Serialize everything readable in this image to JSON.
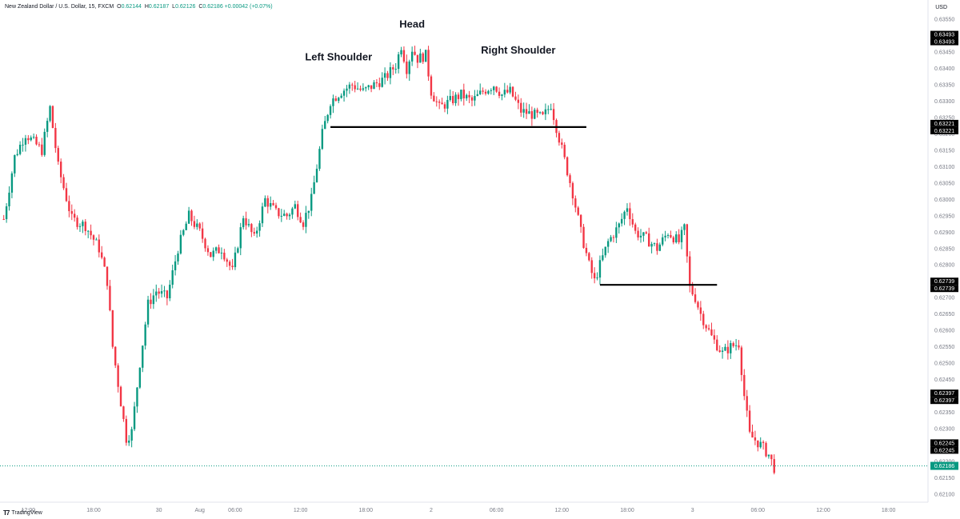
{
  "header": {
    "symbol": "New Zealand Dollar / U.S. Dollar, 15, FXCM",
    "open_label": "O",
    "open": "0.62144",
    "high_label": "H",
    "high": "0.62187",
    "low_label": "L",
    "low": "0.62126",
    "close_label": "C",
    "close": "0.62186",
    "change": "+0.00042 (+0.07%)",
    "currency": "USD"
  },
  "branding": {
    "name": "TradingView"
  },
  "colors": {
    "up": "#089981",
    "down": "#f23645",
    "line": "#000000",
    "text": "#131722",
    "axis_text": "#787b86",
    "last_price": "#089981"
  },
  "chart_data": {
    "type": "candlestick",
    "title": "",
    "ylabel": "",
    "xlabel": "",
    "ylim": [
      0.62075,
      0.63575
    ],
    "y_ticks": [
      "0.63550",
      "0.63500",
      "0.63450",
      "0.63400",
      "0.63350",
      "0.63300",
      "0.63250",
      "0.63200",
      "0.63150",
      "0.63100",
      "0.63050",
      "0.63000",
      "0.62950",
      "0.62900",
      "0.62850",
      "0.62800",
      "0.62750",
      "0.62700",
      "0.62650",
      "0.62600",
      "0.62550",
      "0.62500",
      "0.62450",
      "0.62400",
      "0.62350",
      "0.62300",
      "0.62250",
      "0.62200",
      "0.62150",
      "0.62100"
    ],
    "x_ticks": [
      "12:00",
      "18:00",
      "30",
      "Aug",
      "06:00",
      "12:00",
      "18:00",
      "2",
      "06:00",
      "12:00",
      "18:00",
      "3",
      "06:00",
      "12:00",
      "18:00"
    ],
    "x_tick_index": [
      9,
      33,
      57,
      72,
      85,
      109,
      133,
      157,
      181,
      205,
      229,
      253,
      277,
      301,
      325
    ],
    "bars_total": 340,
    "price_badges": [
      "0.63493",
      "0.63221",
      "0.62739",
      "0.62397",
      "0.62245"
    ],
    "last_price": "0.62186",
    "anchors": [
      [
        0,
        0.6294
      ],
      [
        4,
        0.6313
      ],
      [
        8,
        0.632
      ],
      [
        14,
        0.6315
      ],
      [
        17,
        0.6328
      ],
      [
        20,
        0.631
      ],
      [
        25,
        0.6294
      ],
      [
        30,
        0.6292
      ],
      [
        35,
        0.6285
      ],
      [
        38,
        0.6275
      ],
      [
        40,
        0.6255
      ],
      [
        43,
        0.6238
      ],
      [
        45,
        0.6227
      ],
      [
        47,
        0.6229
      ],
      [
        50,
        0.625
      ],
      [
        53,
        0.6268
      ],
      [
        56,
        0.6272
      ],
      [
        60,
        0.627
      ],
      [
        64,
        0.6285
      ],
      [
        68,
        0.6295
      ],
      [
        72,
        0.629
      ],
      [
        76,
        0.6283
      ],
      [
        80,
        0.6285
      ],
      [
        84,
        0.6278
      ],
      [
        88,
        0.6295
      ],
      [
        92,
        0.6288
      ],
      [
        96,
        0.63
      ],
      [
        100,
        0.6296
      ],
      [
        104,
        0.6295
      ],
      [
        107,
        0.6298
      ],
      [
        110,
        0.6293
      ],
      [
        113,
        0.63
      ],
      [
        115,
        0.631
      ],
      [
        117,
        0.632
      ],
      [
        120,
        0.633
      ],
      [
        124,
        0.6333
      ],
      [
        128,
        0.6335
      ],
      [
        132,
        0.6333
      ],
      [
        136,
        0.6335
      ],
      [
        140,
        0.6337
      ],
      [
        144,
        0.6341
      ],
      [
        146,
        0.6347
      ],
      [
        148,
        0.634
      ],
      [
        150,
        0.6346
      ],
      [
        152,
        0.6343
      ],
      [
        155,
        0.6344
      ],
      [
        157,
        0.6333
      ],
      [
        160,
        0.6328
      ],
      [
        164,
        0.633
      ],
      [
        168,
        0.6332
      ],
      [
        172,
        0.633
      ],
      [
        176,
        0.6333
      ],
      [
        180,
        0.6335
      ],
      [
        183,
        0.6332
      ],
      [
        186,
        0.6333
      ],
      [
        190,
        0.6327
      ],
      [
        194,
        0.6326
      ],
      [
        198,
        0.6325
      ],
      [
        201,
        0.6329
      ],
      [
        203,
        0.6322
      ],
      [
        206,
        0.6312
      ],
      [
        209,
        0.6302
      ],
      [
        212,
        0.629
      ],
      [
        215,
        0.628
      ],
      [
        217,
        0.6275
      ],
      [
        219,
        0.628
      ],
      [
        222,
        0.6287
      ],
      [
        226,
        0.6292
      ],
      [
        229,
        0.6298
      ],
      [
        232,
        0.629
      ],
      [
        236,
        0.6288
      ],
      [
        240,
        0.6285
      ],
      [
        244,
        0.629
      ],
      [
        248,
        0.6287
      ],
      [
        250,
        0.6291
      ],
      [
        252,
        0.6273
      ],
      [
        254,
        0.627
      ],
      [
        256,
        0.6265
      ],
      [
        260,
        0.6258
      ],
      [
        264,
        0.6253
      ],
      [
        267,
        0.6255
      ],
      [
        270,
        0.6256
      ],
      [
        272,
        0.624
      ],
      [
        274,
        0.6228
      ],
      [
        278,
        0.6225
      ],
      [
        281,
        0.6222
      ],
      [
        283,
        0.6218
      ]
    ],
    "annotations": {
      "head": "Head",
      "left_shoulder": "Left Shoulder",
      "right_shoulder": "Right Shoulder"
    },
    "horizontal_lines": [
      {
        "x0": 120,
        "x1": 214,
        "y": 0.63221
      },
      {
        "x0": 219,
        "x1": 262,
        "y": 0.62739
      }
    ],
    "text_marks": [
      {
        "key": "head",
        "x": 150,
        "y": 0.63525
      },
      {
        "key": "left_shoulder",
        "x": 123,
        "y": 0.63425
      },
      {
        "key": "right_shoulder",
        "x": 189,
        "y": 0.63446
      }
    ]
  }
}
